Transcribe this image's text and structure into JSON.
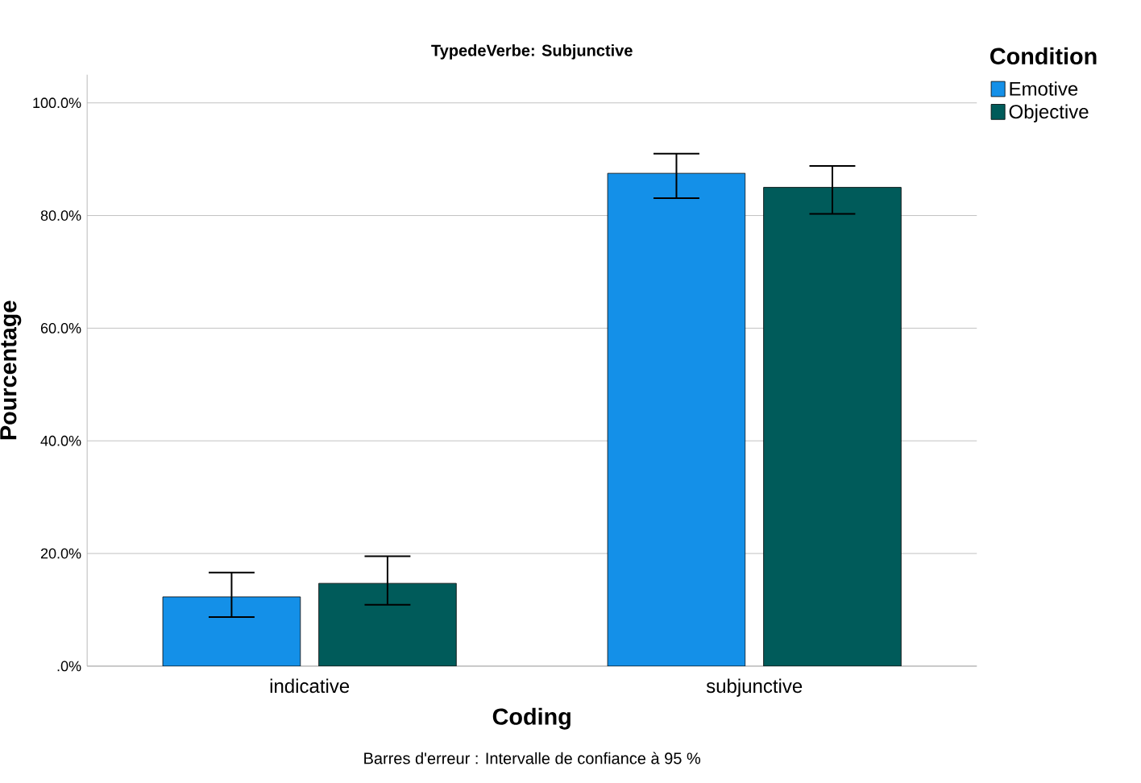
{
  "chart_data": {
    "type": "bar",
    "title": "TypedeVerbe: Subjunctive",
    "xlabel": "Coding",
    "ylabel": "Pourcentage",
    "legend_title": "Condition",
    "annotations": [
      "Barres d'erreur : Intervalle de confiance à 95 %"
    ],
    "categories": [
      "indicative",
      "subjunctive"
    ],
    "series": [
      {
        "name": "Emotive",
        "color": "#1490e8",
        "values": [
          12.3,
          87.5
        ],
        "errors": [
          [
            8.7,
            16.6
          ],
          [
            83.1,
            91.0
          ]
        ]
      },
      {
        "name": "Objective",
        "color": "#005b5a",
        "values": [
          14.7,
          85.0
        ],
        "errors": [
          [
            10.9,
            19.5
          ],
          [
            80.3,
            88.8
          ]
        ]
      }
    ],
    "ylim": [
      0,
      105
    ],
    "yticks": [
      {
        "value": 0,
        "label": ".0%"
      },
      {
        "value": 20,
        "label": "20.0%"
      },
      {
        "value": 40,
        "label": "40.0%"
      },
      {
        "value": 60,
        "label": "60.0%"
      },
      {
        "value": 80,
        "label": "80.0%"
      },
      {
        "value": 100,
        "label": "100.0%"
      }
    ],
    "grid": "y",
    "legend": "top right"
  }
}
